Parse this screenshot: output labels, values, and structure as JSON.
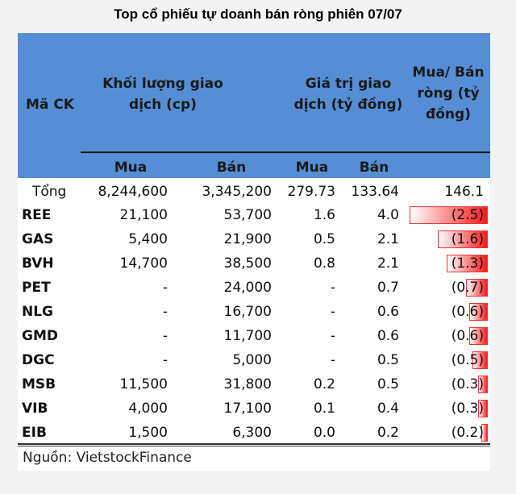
{
  "title": "Top cổ phiếu tự doanh bán ròng phiên 07/07",
  "header": {
    "code": "Mã CK",
    "volume": "Khối lượng giao dịch (cp)",
    "value": "Giá trị giao dịch (tỷ đồng)",
    "net": "Mua/ Bán ròng (tỷ đồng)",
    "buy": "Mua",
    "sell": "Bán",
    "buy2": "Mua",
    "sell2": "Bán"
  },
  "chart_data": {
    "type": "table",
    "total": {
      "label": "Tổng",
      "vol_buy": "8,244,600",
      "vol_sell": "3,345,200",
      "val_buy": "279.73",
      "val_sell": "133.64",
      "net": "146.1"
    },
    "rows": [
      {
        "code": "REE",
        "vol_buy": "21,100",
        "vol_sell": "53,700",
        "val_buy": "1.6",
        "val_sell": "4.0",
        "net": "(2.5)",
        "net_value": -2.5
      },
      {
        "code": "GAS",
        "vol_buy": "5,400",
        "vol_sell": "21,900",
        "val_buy": "0.5",
        "val_sell": "2.1",
        "net": "(1.6)",
        "net_value": -1.6
      },
      {
        "code": "BVH",
        "vol_buy": "14,700",
        "vol_sell": "38,500",
        "val_buy": "0.8",
        "val_sell": "2.1",
        "net": "(1.3)",
        "net_value": -1.3
      },
      {
        "code": "PET",
        "vol_buy": "-",
        "vol_sell": "24,000",
        "val_buy": "-",
        "val_sell": "0.7",
        "net": "(0.7)",
        "net_value": -0.7
      },
      {
        "code": "NLG",
        "vol_buy": "-",
        "vol_sell": "16,700",
        "val_buy": "-",
        "val_sell": "0.6",
        "net": "(0.6)",
        "net_value": -0.6
      },
      {
        "code": "GMD",
        "vol_buy": "-",
        "vol_sell": "11,700",
        "val_buy": "-",
        "val_sell": "0.6",
        "net": "(0.6)",
        "net_value": -0.6
      },
      {
        "code": "DGC",
        "vol_buy": "-",
        "vol_sell": "5,000",
        "val_buy": "-",
        "val_sell": "0.5",
        "net": "(0.5)",
        "net_value": -0.5
      },
      {
        "code": "MSB",
        "vol_buy": "11,500",
        "vol_sell": "31,800",
        "val_buy": "0.2",
        "val_sell": "0.5",
        "net": "(0.3)",
        "net_value": -0.3
      },
      {
        "code": "VIB",
        "vol_buy": "4,000",
        "vol_sell": "17,100",
        "val_buy": "0.1",
        "val_sell": "0.4",
        "net": "(0.3)",
        "net_value": -0.3
      },
      {
        "code": "EIB",
        "vol_buy": "1,500",
        "vol_sell": "6,300",
        "val_buy": "0.0",
        "val_sell": "0.2",
        "net": "(0.2)",
        "net_value": -0.2
      }
    ],
    "bar_color": "#ff1a1a"
  },
  "source": "Nguồn: VietstockFinance"
}
